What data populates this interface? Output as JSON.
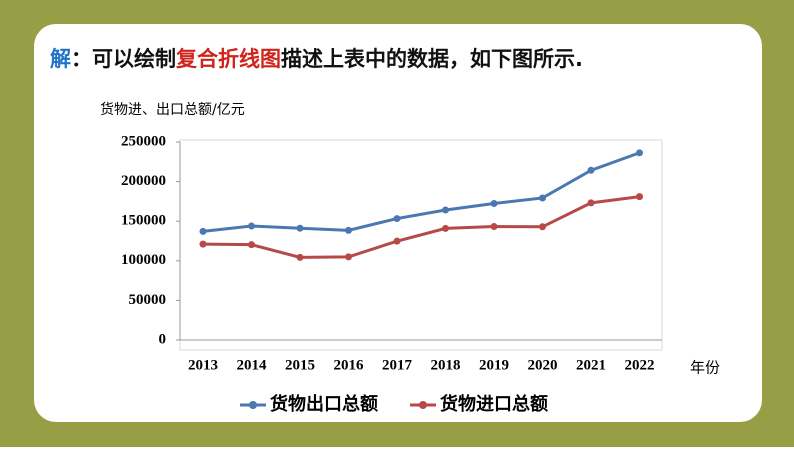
{
  "slide": {
    "title_parts": [
      {
        "text": "解",
        "color": "#1f73c8"
      },
      {
        "text": "：可以绘制",
        "color": "#111111"
      },
      {
        "text": "复合折线图",
        "color": "#d0231c"
      },
      {
        "text": "描述上表中的数据，如下图所示.",
        "color": "#111111"
      }
    ]
  },
  "chart_data": {
    "type": "line",
    "y_label": "货物进、出口总额/亿元",
    "x_label": "年份",
    "categories": [
      "2013",
      "2014",
      "2015",
      "2016",
      "2017",
      "2018",
      "2019",
      "2020",
      "2021",
      "2022"
    ],
    "series": [
      {
        "name": "货物出口总额",
        "color": "#4a78b0",
        "values": [
          137131,
          143884,
          141167,
          138419,
          153309,
          164128,
          172374,
          179326,
          214255,
          236337
        ]
      },
      {
        "name": "货物进口总额",
        "color": "#b54a48",
        "values": [
          121038,
          120358,
          104336,
          104967,
          124790,
          140881,
          143254,
          142936,
          173159,
          181024
        ]
      }
    ],
    "ylim": [
      0,
      250000
    ],
    "yticks": [
      0,
      50000,
      100000,
      150000,
      200000,
      250000
    ],
    "grid": false,
    "legend": "bottom"
  }
}
